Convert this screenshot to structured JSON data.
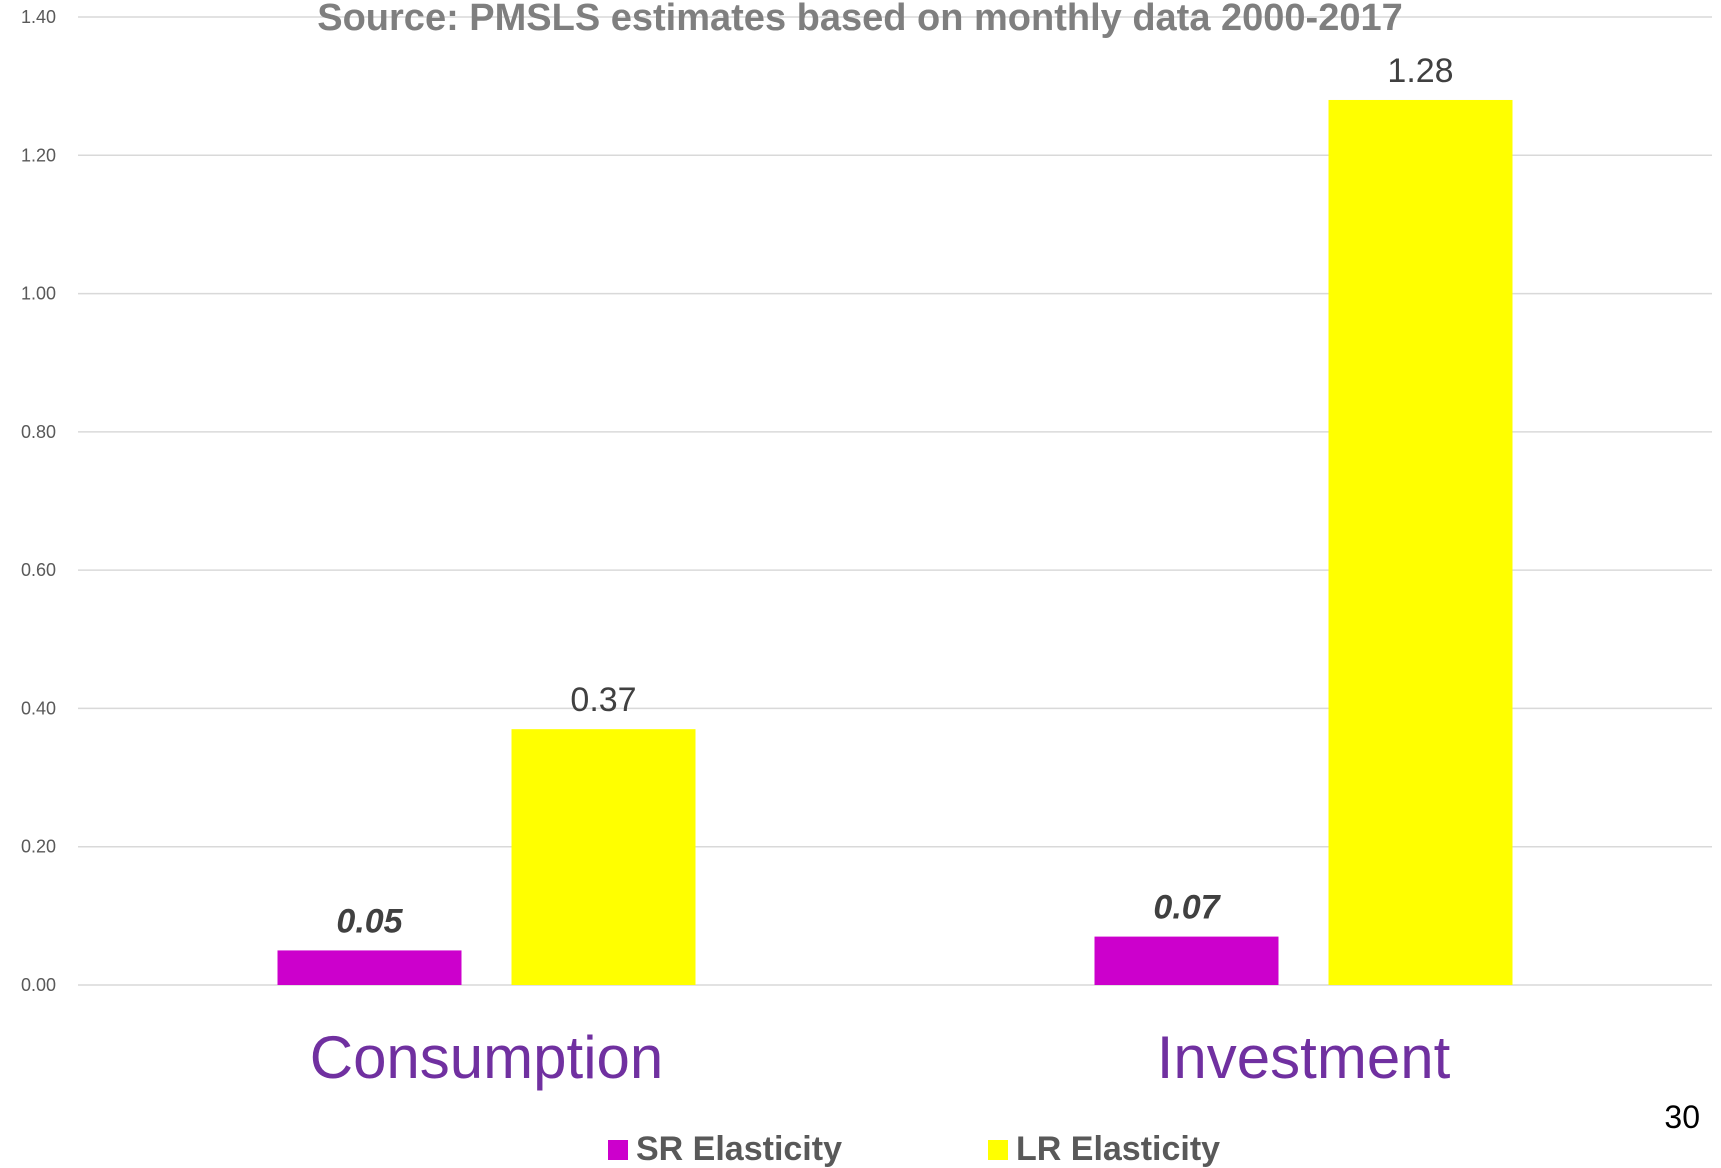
{
  "chart_data": {
    "type": "bar",
    "title": "Source: PMSLS estimates based on monthly data 2000-2017",
    "categories": [
      "Consumption",
      "Investment"
    ],
    "series": [
      {
        "name": "SR Elasticity",
        "color": "#cc00cc",
        "values": [
          0.05,
          0.07
        ],
        "labels": [
          "0.05",
          "0.07"
        ],
        "label_style": "bold-italic"
      },
      {
        "name": "LR Elasticity",
        "color": "#ffff00",
        "values": [
          0.37,
          1.28
        ],
        "labels": [
          "0.37",
          "1.28"
        ],
        "label_style": "normal"
      }
    ],
    "ylim": [
      0,
      1.4
    ],
    "yticks": [
      "0.00",
      "0.20",
      "0.40",
      "0.60",
      "0.80",
      "1.00",
      "1.20",
      "1.40"
    ],
    "grid": true,
    "legend_position": "bottom-center",
    "xlabel": "",
    "ylabel": ""
  },
  "slide": {
    "page_number": "30"
  }
}
